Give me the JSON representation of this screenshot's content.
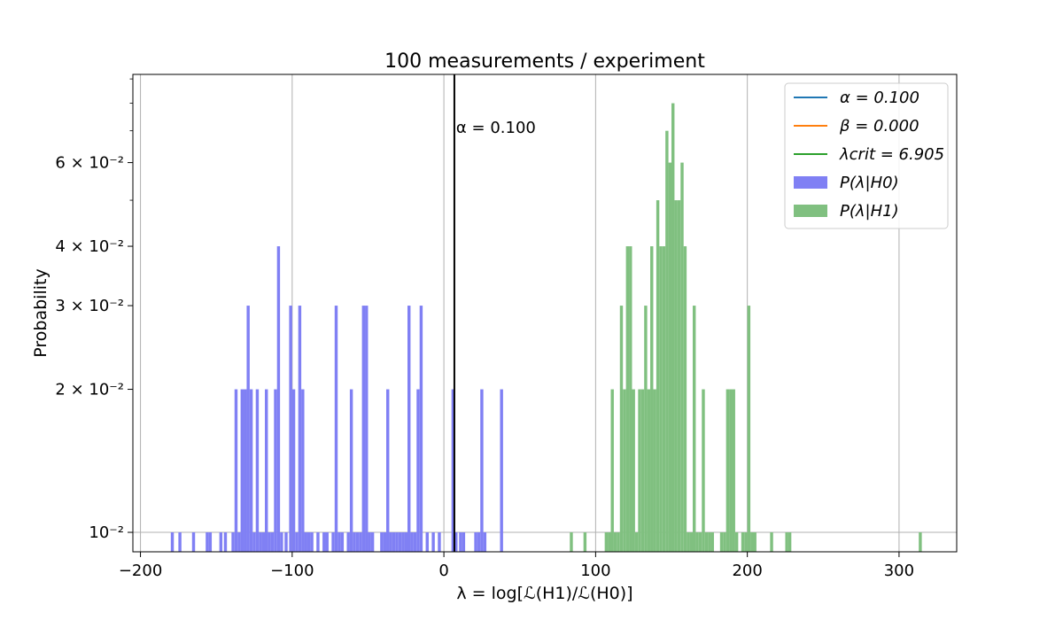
{
  "chart_data": {
    "type": "bar",
    "title": "100 measurements / experiment",
    "xlabel": "λ = log[ℒ(H1)/ℒ(H0)]",
    "ylabel": "Probability",
    "yscale": "log",
    "xlim": [
      -205,
      338
    ],
    "ylim": [
      0.0091,
      0.092
    ],
    "grid": true,
    "x_ticks": [
      -200,
      -100,
      0,
      100,
      200,
      300
    ],
    "x_tick_labels": [
      "−200",
      "−100",
      "0",
      "100",
      "200",
      "300"
    ],
    "y_ticks": [
      {
        "value": 0.01,
        "label": "10⁻²"
      },
      {
        "value": 0.02,
        "label": "2 × 10⁻²"
      },
      {
        "value": 0.03,
        "label": "3 × 10⁻²"
      },
      {
        "value": 0.04,
        "label": "4 × 10⁻²"
      },
      {
        "value": 0.06,
        "label": "6 × 10⁻²"
      }
    ],
    "legend_position": "top-right",
    "legend": [
      {
        "kind": "line",
        "label": "α = 0.100",
        "color": "#1f77b4"
      },
      {
        "kind": "line",
        "label": "β = 0.000",
        "color": "#ff7f0e"
      },
      {
        "kind": "line",
        "label": "λcrit = 6.905",
        "color": "#2ca02c"
      },
      {
        "kind": "patch",
        "label": "P(λ|H0)",
        "color": "#8080f4"
      },
      {
        "kind": "patch",
        "label": "P(λ|H1)",
        "color": "#80c080"
      }
    ],
    "vline": {
      "x": 6.905,
      "label": "α = 0.100",
      "color": "#000000"
    },
    "series": [
      {
        "name": "P(λ|H0)",
        "color": "#8080f4",
        "bin_width": 2.0,
        "bins": [
          [
            -180,
            0.01
          ],
          [
            -175,
            0.01
          ],
          [
            -166,
            0.01
          ],
          [
            -157,
            0.01
          ],
          [
            -155,
            0.01
          ],
          [
            -148,
            0.01
          ],
          [
            -145,
            0.01
          ],
          [
            -140,
            0.01
          ],
          [
            -138,
            0.02
          ],
          [
            -136,
            0.01
          ],
          [
            -134,
            0.02
          ],
          [
            -132,
            0.02
          ],
          [
            -130,
            0.03
          ],
          [
            -128,
            0.02
          ],
          [
            -126,
            0.01
          ],
          [
            -124,
            0.02
          ],
          [
            -122,
            0.01
          ],
          [
            -120,
            0.01
          ],
          [
            -118,
            0.02
          ],
          [
            -116,
            0.01
          ],
          [
            -114,
            0.01
          ],
          [
            -112,
            0.02
          ],
          [
            -110,
            0.04
          ],
          [
            -108,
            0.01
          ],
          [
            -105,
            0.01
          ],
          [
            -102,
            0.03
          ],
          [
            -100,
            0.02
          ],
          [
            -98,
            0.01
          ],
          [
            -96,
            0.03
          ],
          [
            -94,
            0.02
          ],
          [
            -92,
            0.01
          ],
          [
            -90,
            0.01
          ],
          [
            -88,
            0.01
          ],
          [
            -84,
            0.01
          ],
          [
            -80,
            0.01
          ],
          [
            -78,
            0.01
          ],
          [
            -74,
            0.01
          ],
          [
            -72,
            0.03
          ],
          [
            -70,
            0.01
          ],
          [
            -68,
            0.01
          ],
          [
            -64,
            0.01
          ],
          [
            -62,
            0.02
          ],
          [
            -60,
            0.01
          ],
          [
            -58,
            0.01
          ],
          [
            -56,
            0.01
          ],
          [
            -54,
            0.03
          ],
          [
            -52,
            0.03
          ],
          [
            -50,
            0.01
          ],
          [
            -48,
            0.01
          ],
          [
            -42,
            0.01
          ],
          [
            -40,
            0.01
          ],
          [
            -38,
            0.02
          ],
          [
            -36,
            0.01
          ],
          [
            -34,
            0.01
          ],
          [
            -32,
            0.01
          ],
          [
            -30,
            0.01
          ],
          [
            -28,
            0.01
          ],
          [
            -26,
            0.01
          ],
          [
            -24,
            0.03
          ],
          [
            -22,
            0.01
          ],
          [
            -20,
            0.01
          ],
          [
            -18,
            0.02
          ],
          [
            -16,
            0.03
          ],
          [
            -12,
            0.01
          ],
          [
            -8,
            0.01
          ],
          [
            -4,
            0.01
          ],
          [
            5,
            0.02
          ],
          [
            7,
            0.01
          ],
          [
            10,
            0.01
          ],
          [
            12,
            0.01
          ],
          [
            20,
            0.01
          ],
          [
            22,
            0.01
          ],
          [
            24,
            0.02
          ],
          [
            26,
            0.01
          ],
          [
            37,
            0.02
          ]
        ]
      },
      {
        "name": "P(λ|H1)",
        "color": "#80c080",
        "bin_width": 2.0,
        "bins": [
          [
            83,
            0.01
          ],
          [
            92,
            0.01
          ],
          [
            106,
            0.01
          ],
          [
            108,
            0.01
          ],
          [
            110,
            0.02
          ],
          [
            112,
            0.01
          ],
          [
            114,
            0.01
          ],
          [
            116,
            0.03
          ],
          [
            118,
            0.02
          ],
          [
            120,
            0.04
          ],
          [
            122,
            0.04
          ],
          [
            124,
            0.02
          ],
          [
            126,
            0.01
          ],
          [
            128,
            0.02
          ],
          [
            130,
            0.02
          ],
          [
            132,
            0.03
          ],
          [
            134,
            0.02
          ],
          [
            136,
            0.04
          ],
          [
            138,
            0.02
          ],
          [
            140,
            0.05
          ],
          [
            142,
            0.04
          ],
          [
            144,
            0.04
          ],
          [
            146,
            0.07
          ],
          [
            148,
            0.06
          ],
          [
            150,
            0.08
          ],
          [
            152,
            0.05
          ],
          [
            154,
            0.05
          ],
          [
            156,
            0.06
          ],
          [
            158,
            0.04
          ],
          [
            160,
            0.01
          ],
          [
            162,
            0.01
          ],
          [
            164,
            0.03
          ],
          [
            166,
            0.01
          ],
          [
            168,
            0.01
          ],
          [
            170,
            0.02
          ],
          [
            172,
            0.01
          ],
          [
            174,
            0.01
          ],
          [
            176,
            0.01
          ],
          [
            182,
            0.01
          ],
          [
            184,
            0.01
          ],
          [
            186,
            0.02
          ],
          [
            188,
            0.02
          ],
          [
            190,
            0.02
          ],
          [
            192,
            0.01
          ],
          [
            196,
            0.01
          ],
          [
            198,
            0.01
          ],
          [
            200,
            0.03
          ],
          [
            202,
            0.01
          ],
          [
            204,
            0.01
          ],
          [
            215,
            0.01
          ],
          [
            225,
            0.01
          ],
          [
            227,
            0.01
          ],
          [
            313,
            0.01
          ]
        ]
      }
    ]
  }
}
